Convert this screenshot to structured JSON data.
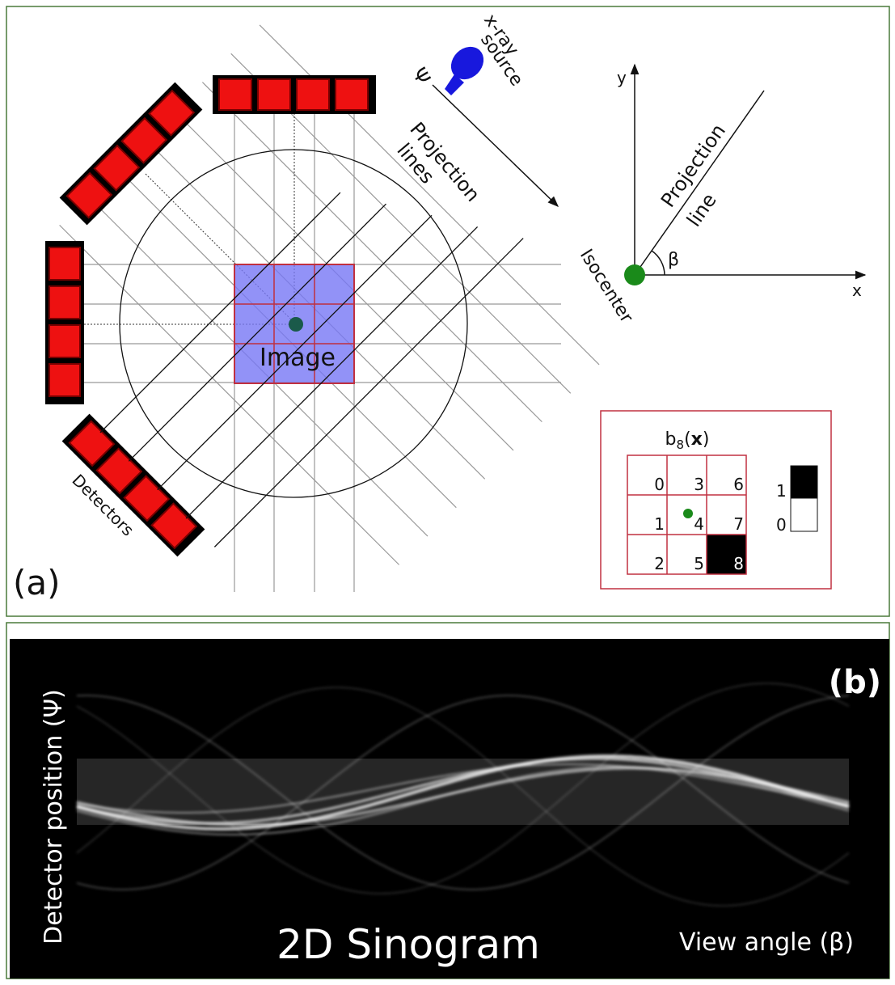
{
  "panel_a": {
    "label": "(a)",
    "source_label": [
      "x-ray",
      "source"
    ],
    "psi": "Ψ",
    "projection_lines": [
      "Projection",
      "lines"
    ],
    "image": "Image",
    "detectors": "Detectors",
    "axes": {
      "y": "y",
      "x": "x",
      "projection_line": [
        "Projection",
        "line"
      ],
      "beta": "β",
      "isocenter": "Isocenter"
    },
    "basis": {
      "title": [
        "b",
        "8",
        "(",
        "x",
        ")"
      ],
      "cells": [
        "0",
        "1",
        "2",
        "3",
        "4",
        "5",
        "6",
        "7",
        "8"
      ],
      "legend": [
        "1",
        "0"
      ]
    }
  },
  "panel_b": {
    "label": "(b)",
    "y_label": "Detector position (Ψ)",
    "title": "2D Sinogram",
    "x_label": "View angle (β)"
  }
}
